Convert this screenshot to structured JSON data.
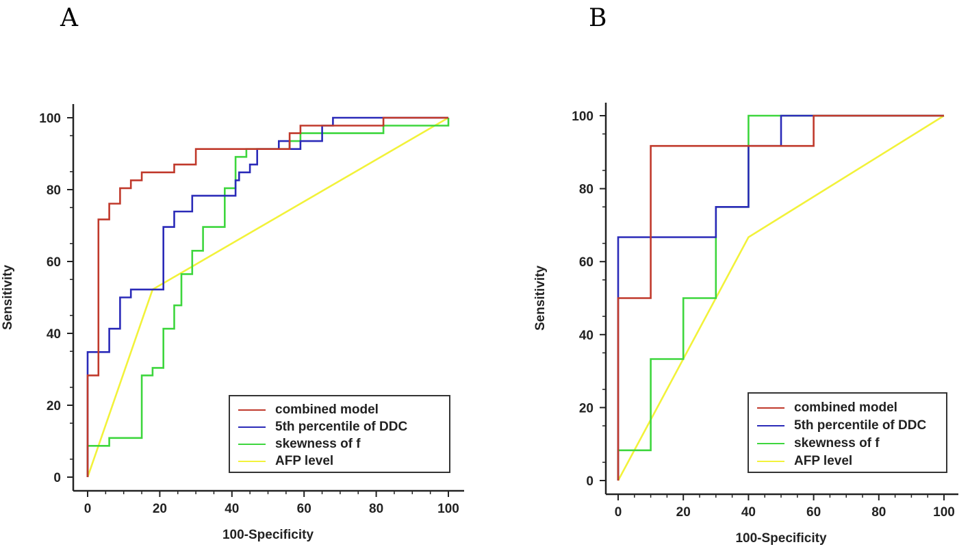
{
  "panels": [
    {
      "letter": "A",
      "chart_data": {
        "type": "line",
        "title": "",
        "xlabel": "100-Specificity",
        "ylabel": "Sensitivity",
        "xlim": [
          0,
          100
        ],
        "ylim": [
          0,
          100
        ],
        "xticks": [
          "0",
          "20",
          "40",
          "60",
          "80",
          "100"
        ],
        "yticks": [
          "0",
          "20",
          "40",
          "60",
          "80",
          "100"
        ],
        "legend": "bottom-right",
        "series": [
          {
            "name": "combined model",
            "color": "#c0392b",
            "step": true,
            "points": [
              [
                0,
                0
              ],
              [
                0,
                28.3
              ],
              [
                3,
                28.3
              ],
              [
                3,
                71.7
              ],
              [
                6,
                71.7
              ],
              [
                6,
                76.1
              ],
              [
                9,
                76.1
              ],
              [
                9,
                80.4
              ],
              [
                12,
                80.4
              ],
              [
                12,
                82.6
              ],
              [
                15,
                82.6
              ],
              [
                15,
                84.8
              ],
              [
                24,
                84.8
              ],
              [
                24,
                87
              ],
              [
                30,
                87
              ],
              [
                30,
                91.3
              ],
              [
                44,
                91.3
              ],
              [
                44,
                91.3
              ],
              [
                56,
                91.3
              ],
              [
                56,
                95.7
              ],
              [
                59,
                95.7
              ],
              [
                59,
                97.8
              ],
              [
                82,
                97.8
              ],
              [
                82,
                100
              ],
              [
                100,
                100
              ]
            ]
          },
          {
            "name": "5th percentile of DDC",
            "color": "#2a2ab8",
            "step": true,
            "points": [
              [
                0,
                0
              ],
              [
                0,
                34.8
              ],
              [
                6,
                34.8
              ],
              [
                6,
                41.3
              ],
              [
                9,
                41.3
              ],
              [
                9,
                50
              ],
              [
                12,
                50
              ],
              [
                12,
                52.2
              ],
              [
                21,
                52.2
              ],
              [
                21,
                69.6
              ],
              [
                24,
                69.6
              ],
              [
                24,
                73.9
              ],
              [
                29,
                73.9
              ],
              [
                29,
                78.3
              ],
              [
                41,
                78.3
              ],
              [
                41,
                82.6
              ],
              [
                42,
                82.6
              ],
              [
                42,
                84.8
              ],
              [
                45,
                84.8
              ],
              [
                45,
                87
              ],
              [
                47,
                87
              ],
              [
                47,
                91.3
              ],
              [
                53,
                91.3
              ],
              [
                53,
                93.5
              ],
              [
                56,
                93.5
              ],
              [
                56,
                91.3
              ],
              [
                59,
                91.3
              ],
              [
                59,
                93.5
              ],
              [
                65,
                93.5
              ],
              [
                65,
                97.8
              ],
              [
                68,
                97.8
              ],
              [
                68,
                100
              ],
              [
                100,
                100
              ]
            ]
          },
          {
            "name": "skewness of f",
            "color": "#3dd63d",
            "step": true,
            "points": [
              [
                0,
                0
              ],
              [
                0,
                8.7
              ],
              [
                6,
                8.7
              ],
              [
                6,
                10.9
              ],
              [
                15,
                10.9
              ],
              [
                15,
                28.3
              ],
              [
                18,
                28.3
              ],
              [
                18,
                30.4
              ],
              [
                21,
                30.4
              ],
              [
                21,
                41.3
              ],
              [
                24,
                41.3
              ],
              [
                24,
                47.8
              ],
              [
                26,
                47.8
              ],
              [
                26,
                56.5
              ],
              [
                29,
                56.5
              ],
              [
                29,
                63
              ],
              [
                32,
                63
              ],
              [
                32,
                69.6
              ],
              [
                38,
                69.6
              ],
              [
                38,
                80.4
              ],
              [
                41,
                80.4
              ],
              [
                41,
                89.1
              ],
              [
                44,
                89.1
              ],
              [
                44,
                91.3
              ],
              [
                56,
                91.3
              ],
              [
                56,
                93.5
              ],
              [
                59,
                93.5
              ],
              [
                59,
                95.7
              ],
              [
                82,
                95.7
              ],
              [
                82,
                97.8
              ],
              [
                100,
                97.8
              ],
              [
                100,
                100
              ]
            ]
          },
          {
            "name": "AFP level",
            "color": "#f2f23a",
            "step": false,
            "points": [
              [
                0,
                0
              ],
              [
                18,
                52.2
              ],
              [
                100,
                100
              ]
            ]
          }
        ]
      }
    },
    {
      "letter": "B",
      "chart_data": {
        "type": "line",
        "title": "",
        "xlabel": "100-Specificity",
        "ylabel": "Sensitivity",
        "xlim": [
          0,
          100
        ],
        "ylim": [
          0,
          100
        ],
        "xticks": [
          "0",
          "20",
          "40",
          "60",
          "80",
          "100"
        ],
        "yticks": [
          "0",
          "20",
          "40",
          "60",
          "80",
          "100"
        ],
        "legend": "bottom-right",
        "series": [
          {
            "name": "combined model",
            "color": "#c0392b",
            "step": true,
            "points": [
              [
                0,
                0
              ],
              [
                0,
                50
              ],
              [
                10,
                50
              ],
              [
                10,
                91.7
              ],
              [
                50,
                91.7
              ],
              [
                60,
                91.7
              ],
              [
                60,
                100
              ],
              [
                100,
                100
              ]
            ]
          },
          {
            "name": "5th percentile of DDC",
            "color": "#2a2ab8",
            "step": true,
            "points": [
              [
                0,
                0
              ],
              [
                0,
                66.7
              ],
              [
                30,
                66.7
              ],
              [
                30,
                75
              ],
              [
                40,
                75
              ],
              [
                40,
                91.7
              ],
              [
                50,
                91.7
              ],
              [
                50,
                100
              ],
              [
                100,
                100
              ]
            ]
          },
          {
            "name": "skewness of f",
            "color": "#3dd63d",
            "step": true,
            "points": [
              [
                0,
                0
              ],
              [
                0,
                8.3
              ],
              [
                10,
                8.3
              ],
              [
                10,
                33.3
              ],
              [
                20,
                33.3
              ],
              [
                20,
                50
              ],
              [
                30,
                50
              ],
              [
                30,
                75
              ],
              [
                40,
                75
              ],
              [
                40,
                100
              ],
              [
                100,
                100
              ]
            ]
          },
          {
            "name": "AFP level",
            "color": "#f2f23a",
            "step": false,
            "points": [
              [
                0,
                0
              ],
              [
                40,
                66.7
              ],
              [
                100,
                100
              ]
            ]
          }
        ]
      }
    }
  ]
}
